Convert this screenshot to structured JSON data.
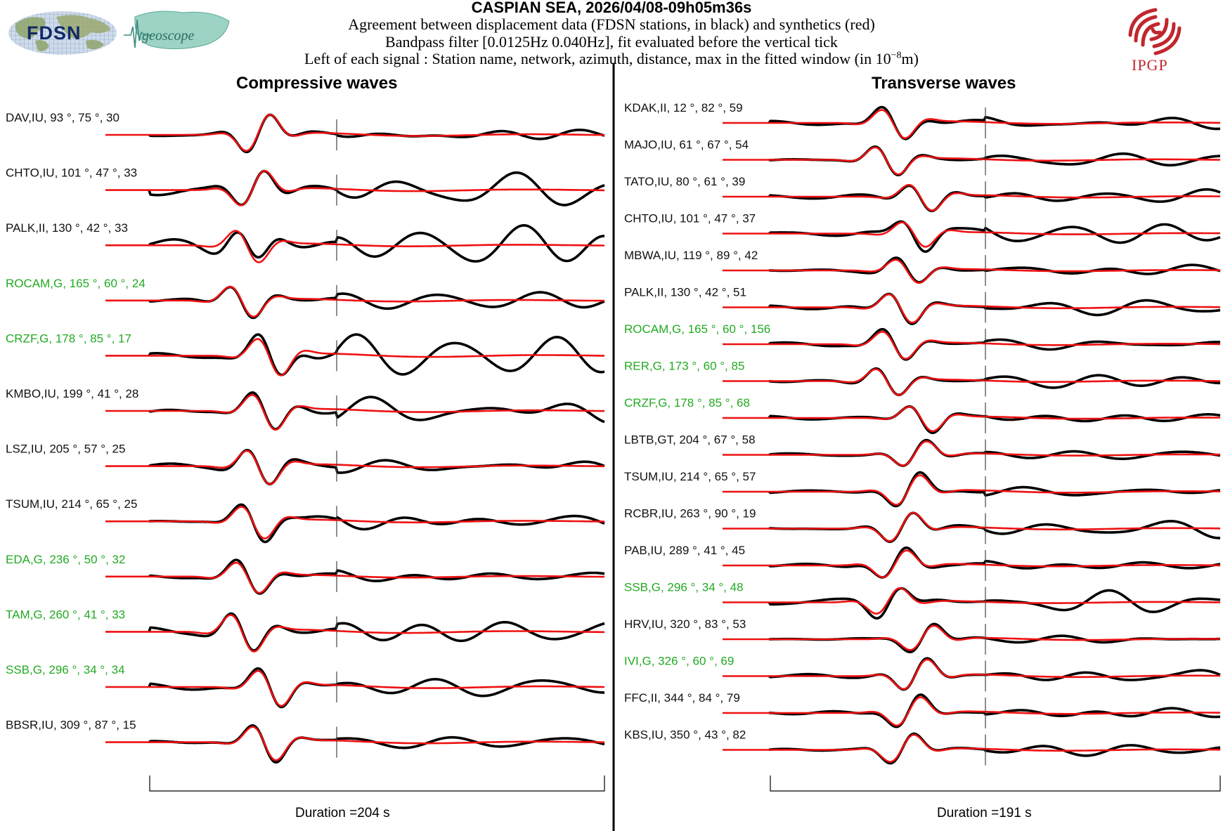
{
  "header": {
    "title": "CASPIAN SEA, 2026/04/08-09h05m36s",
    "line1": "Agreement between displacement data (FDSN stations, in black) and synthetics (red)",
    "line2": "Bandpass filter [0.0125Hz 0.040Hz], fit evaluated before the vertical tick",
    "line3_prefix": "Left of each signal : Station name, network, azimuth, distance, max in the fitted window (in 10",
    "line3_exp": "−8",
    "line3_suffix": "m)"
  },
  "logos": {
    "fdsn": "FDSN",
    "geoscope": "geoscope",
    "ipgp": "IPGP"
  },
  "colors": {
    "data": "#000000",
    "synthetic": "#ee1111",
    "green_label": "#22aa22",
    "black_label": "#111111",
    "ipgp": "#c0272d"
  },
  "chart_data": [
    {
      "type": "line",
      "title": "Compressive waves",
      "duration_label": "Duration =204 s",
      "duration_s": 204,
      "series_legend": [
        "data (black)",
        "synthetics (red)"
      ],
      "stations": [
        {
          "label": "DAV,IU, 93 °, 75 °, 30",
          "name": "DAV",
          "network": "IU",
          "azimuth": 93,
          "distance": 75,
          "max": 30,
          "color": "black",
          "seed": 1,
          "noise": 1.0
        },
        {
          "label": "CHTO,IU, 101 °, 47 °, 33",
          "name": "CHTO",
          "network": "IU",
          "azimuth": 101,
          "distance": 47,
          "max": 33,
          "color": "black",
          "seed": 2,
          "noise": 1.8
        },
        {
          "label": "PALK,II, 130 °, 42 °, 33",
          "name": "PALK",
          "network": "II",
          "azimuth": 130,
          "distance": 42,
          "max": 33,
          "color": "black",
          "seed": 3,
          "noise": 2.6
        },
        {
          "label": "ROCAM,G, 165 °, 60 °, 24",
          "name": "ROCAM",
          "network": "G",
          "azimuth": 165,
          "distance": 60,
          "max": 24,
          "color": "green",
          "seed": 4,
          "noise": 1.1
        },
        {
          "label": "CRZF,G, 178 °, 85 °, 17",
          "name": "CRZF",
          "network": "G",
          "azimuth": 178,
          "distance": 85,
          "max": 17,
          "color": "green",
          "seed": 5,
          "noise": 2.0
        },
        {
          "label": "KMBO,IU, 199 °, 41 °, 28",
          "name": "KMBO",
          "network": "IU",
          "azimuth": 199,
          "distance": 41,
          "max": 28,
          "color": "black",
          "seed": 6,
          "noise": 1.4
        },
        {
          "label": "LSZ,IU, 205 °, 57 °, 25",
          "name": "LSZ",
          "network": "IU",
          "azimuth": 205,
          "distance": 57,
          "max": 25,
          "color": "black",
          "seed": 7,
          "noise": 0.9
        },
        {
          "label": "TSUM,IU, 214 °, 65 °, 25",
          "name": "TSUM",
          "network": "IU",
          "azimuth": 214,
          "distance": 65,
          "max": 25,
          "color": "black",
          "seed": 8,
          "noise": 1.0
        },
        {
          "label": "EDA,G, 236 °, 50 °, 32",
          "name": "EDA",
          "network": "G",
          "azimuth": 236,
          "distance": 50,
          "max": 32,
          "color": "green",
          "seed": 9,
          "noise": 0.8
        },
        {
          "label": "TAM,G, 260 °, 41 °, 33",
          "name": "TAM",
          "network": "G",
          "azimuth": 260,
          "distance": 41,
          "max": 33,
          "color": "green",
          "seed": 10,
          "noise": 1.9
        },
        {
          "label": "SSB,G, 296 °, 34 °, 34",
          "name": "SSB",
          "network": "G",
          "azimuth": 296,
          "distance": 34,
          "max": 34,
          "color": "green",
          "seed": 11,
          "noise": 1.0
        },
        {
          "label": "BBSR,IU, 309 °, 87 °, 15",
          "name": "BBSR",
          "network": "IU",
          "azimuth": 309,
          "distance": 87,
          "max": 15,
          "color": "black",
          "seed": 12,
          "noise": 0.6
        }
      ]
    },
    {
      "type": "line",
      "title": "Transverse waves",
      "duration_label": "Duration =191 s",
      "duration_s": 191,
      "series_legend": [
        "data (black)",
        "synthetics (red)"
      ],
      "stations": [
        {
          "label": "KDAK,II, 12 °, 82 °, 59",
          "name": "KDAK",
          "network": "II",
          "azimuth": 12,
          "distance": 82,
          "max": 59,
          "color": "black",
          "seed": 21,
          "noise": 0.9
        },
        {
          "label": "MAJO,IU, 61 °, 67 °, 54",
          "name": "MAJO",
          "network": "IU",
          "azimuth": 61,
          "distance": 67,
          "max": 54,
          "color": "black",
          "seed": 22,
          "noise": 0.8
        },
        {
          "label": "TATO,IU, 80 °, 61 °, 39",
          "name": "TATO",
          "network": "IU",
          "azimuth": 80,
          "distance": 61,
          "max": 39,
          "color": "black",
          "seed": 23,
          "noise": 1.0
        },
        {
          "label": "CHTO,IU, 101 °, 47 °, 37",
          "name": "CHTO",
          "network": "IU",
          "azimuth": 101,
          "distance": 47,
          "max": 37,
          "color": "black",
          "seed": 24,
          "noise": 1.6
        },
        {
          "label": "MBWA,IU, 119 °, 89 °, 42",
          "name": "MBWA",
          "network": "IU",
          "azimuth": 119,
          "distance": 89,
          "max": 42,
          "color": "black",
          "seed": 25,
          "noise": 0.9
        },
        {
          "label": "PALK,II, 130 °, 42 °, 51",
          "name": "PALK",
          "network": "II",
          "azimuth": 130,
          "distance": 42,
          "max": 51,
          "color": "black",
          "seed": 26,
          "noise": 0.9
        },
        {
          "label": "ROCAM,G, 165 °, 60 °, 156",
          "name": "ROCAM",
          "network": "G",
          "azimuth": 165,
          "distance": 60,
          "max": 156,
          "color": "green",
          "seed": 27,
          "noise": 0.7
        },
        {
          "label": "RER,G, 173 °, 60 °, 85",
          "name": "RER",
          "network": "G",
          "azimuth": 173,
          "distance": 60,
          "max": 85,
          "color": "green",
          "seed": 28,
          "noise": 0.9
        },
        {
          "label": "CRZF,G, 178 °, 85 °, 68",
          "name": "CRZF",
          "network": "G",
          "azimuth": 178,
          "distance": 85,
          "max": 68,
          "color": "green",
          "seed": 29,
          "noise": 0.9
        },
        {
          "label": "LBTB,GT, 204 °, 67 °, 58",
          "name": "LBTB",
          "network": "GT",
          "azimuth": 204,
          "distance": 67,
          "max": 58,
          "color": "black",
          "seed": 30,
          "noise": 0.7
        },
        {
          "label": "TSUM,IU, 214 °, 65 °, 57",
          "name": "TSUM",
          "network": "IU",
          "azimuth": 214,
          "distance": 65,
          "max": 57,
          "color": "black",
          "seed": 31,
          "noise": 0.7
        },
        {
          "label": "RCBR,IU, 263 °, 90 °, 19",
          "name": "RCBR",
          "network": "IU",
          "azimuth": 263,
          "distance": 90,
          "max": 19,
          "color": "black",
          "seed": 32,
          "noise": 1.5
        },
        {
          "label": "PAB,IU, 289 °, 41 °, 45",
          "name": "PAB",
          "network": "IU",
          "azimuth": 289,
          "distance": 41,
          "max": 45,
          "color": "black",
          "seed": 33,
          "noise": 0.8
        },
        {
          "label": "SSB,G, 296 °, 34 °, 48",
          "name": "SSB",
          "network": "G",
          "azimuth": 296,
          "distance": 34,
          "max": 48,
          "color": "green",
          "seed": 34,
          "noise": 1.7
        },
        {
          "label": "HRV,IU, 320 °, 83 °, 53",
          "name": "HRV",
          "network": "IU",
          "azimuth": 320,
          "distance": 83,
          "max": 53,
          "color": "black",
          "seed": 35,
          "noise": 0.7
        },
        {
          "label": "IVI,G, 326 °, 60 °, 69",
          "name": "IVI",
          "network": "G",
          "azimuth": 326,
          "distance": 60,
          "max": 69,
          "color": "green",
          "seed": 36,
          "noise": 0.9
        },
        {
          "label": "FFC,II, 344 °, 84 °, 79",
          "name": "FFC",
          "network": "II",
          "azimuth": 344,
          "distance": 84,
          "max": 79,
          "color": "black",
          "seed": 37,
          "noise": 0.7
        },
        {
          "label": "KBS,IU, 350 °, 43 °, 82",
          "name": "KBS",
          "network": "IU",
          "azimuth": 350,
          "distance": 43,
          "max": 82,
          "color": "black",
          "seed": 38,
          "noise": 0.7
        }
      ]
    }
  ]
}
